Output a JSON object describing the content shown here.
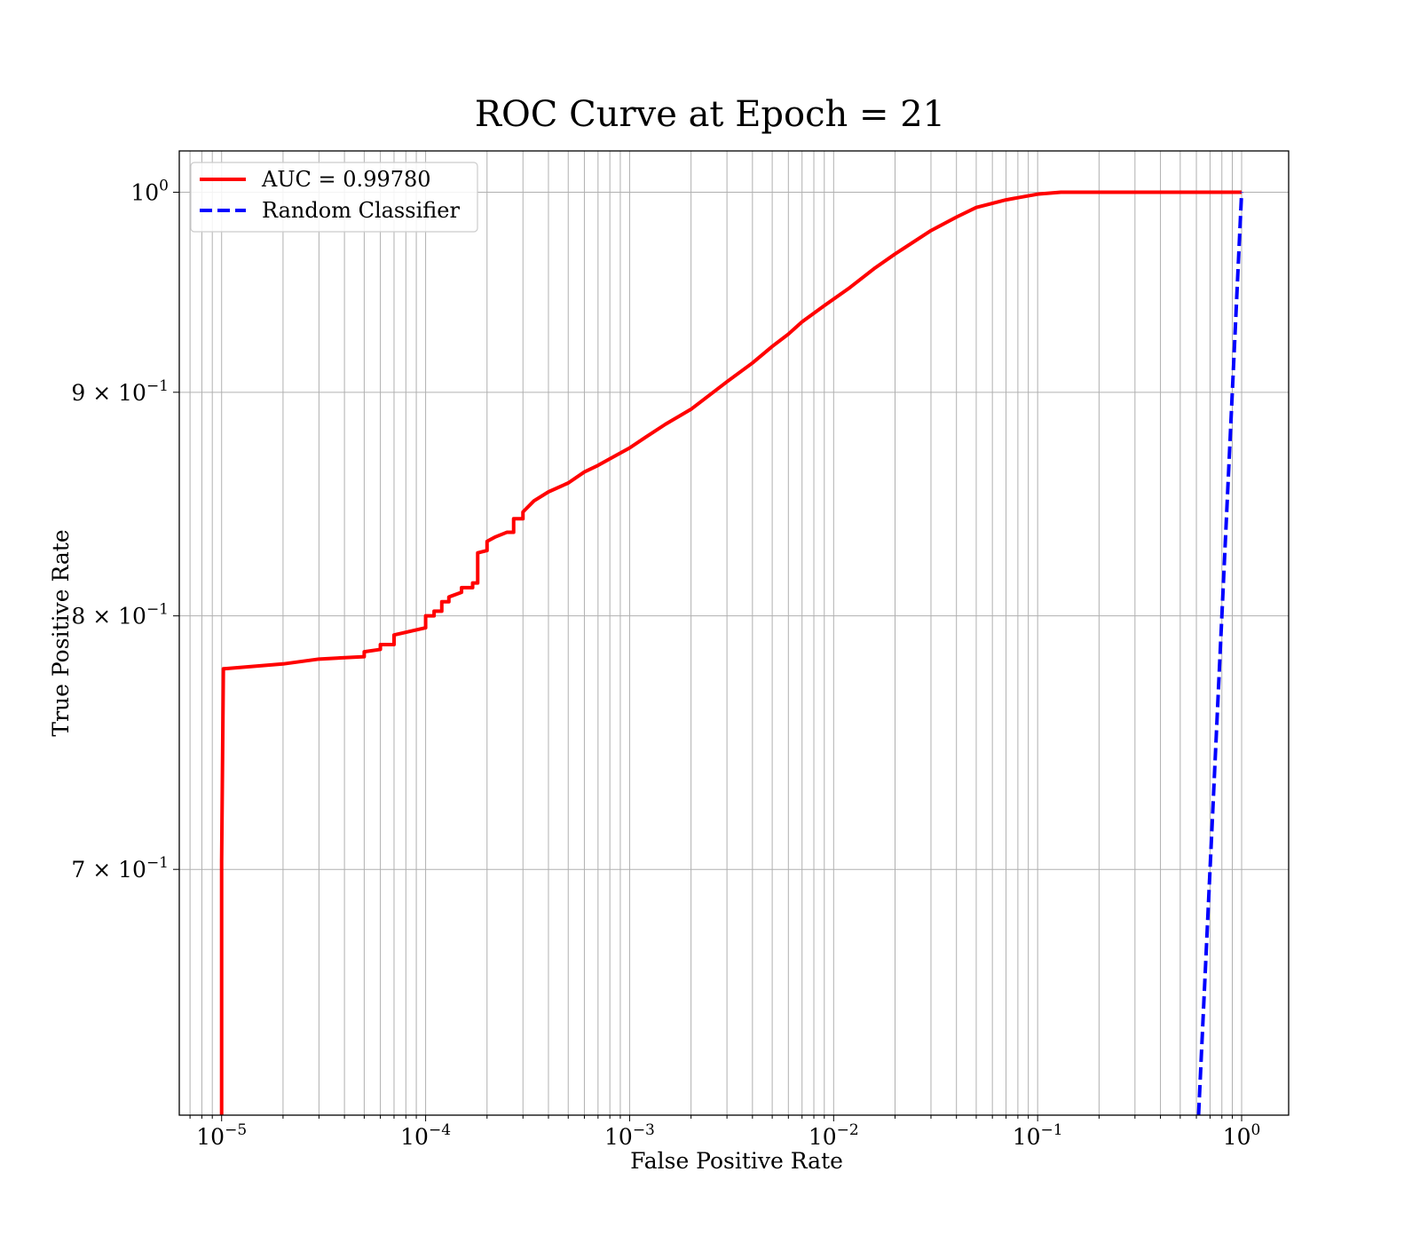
{
  "chart_data": {
    "type": "line",
    "title": "ROC Curve at Epoch = 21",
    "xlabel": "False Positive Rate",
    "ylabel": "True Positive Rate",
    "xscale": "log",
    "yscale": "log",
    "xlim": [
      6.2e-06,
      1.7
    ],
    "ylim": [
      0.615,
      1.022
    ],
    "x_ticks": [
      {
        "base": "10",
        "exp": "−5",
        "value": 1e-05
      },
      {
        "base": "10",
        "exp": "−4",
        "value": 0.0001
      },
      {
        "base": "10",
        "exp": "−3",
        "value": 0.001
      },
      {
        "base": "10",
        "exp": "−2",
        "value": 0.01
      },
      {
        "base": "10",
        "exp": "−1",
        "value": 0.1
      },
      {
        "base": "10",
        "exp": "0",
        "value": 1
      }
    ],
    "y_ticks": [
      {
        "mant": "7 × ",
        "base": "10",
        "exp": "−1",
        "value": 0.7
      },
      {
        "mant": "8 × ",
        "base": "10",
        "exp": "−1",
        "value": 0.8
      },
      {
        "mant": "9 × ",
        "base": "10",
        "exp": "−1",
        "value": 0.9
      },
      {
        "mant": "",
        "base": "10",
        "exp": "0",
        "value": 1.0
      }
    ],
    "grid": true,
    "legend_position": "upper-left",
    "series": [
      {
        "name": "AUC = 0.99780",
        "color": "#ff0000",
        "style": "solid",
        "x": [
          1e-05,
          1e-05,
          1e-05,
          1.02e-05,
          2e-05,
          3e-05,
          5e-05,
          5e-05,
          6e-05,
          6e-05,
          7e-05,
          7e-05,
          0.0001,
          0.0001,
          0.00011,
          0.00011,
          0.00012,
          0.00012,
          0.00013,
          0.00013,
          0.00015,
          0.00015,
          0.00017,
          0.00017,
          0.00018,
          0.00018,
          0.0002,
          0.0002,
          0.00022,
          0.00025,
          0.00027,
          0.00027,
          0.0003,
          0.0003,
          0.00034,
          0.0004,
          0.0005,
          0.0006,
          0.0007,
          0.0008,
          0.001,
          0.0012,
          0.0015,
          0.002,
          0.003,
          0.004,
          0.005,
          0.006,
          0.007,
          0.009,
          0.012,
          0.016,
          0.02,
          0.03,
          0.04,
          0.05,
          0.07,
          0.1,
          0.13,
          0.2,
          0.5,
          1.0
        ],
        "y": [
          0.615,
          0.63,
          0.703,
          0.778,
          0.78,
          0.782,
          0.783,
          0.785,
          0.786,
          0.788,
          0.788,
          0.792,
          0.795,
          0.8,
          0.8,
          0.802,
          0.802,
          0.806,
          0.806,
          0.808,
          0.81,
          0.812,
          0.812,
          0.814,
          0.814,
          0.827,
          0.828,
          0.832,
          0.834,
          0.836,
          0.836,
          0.842,
          0.842,
          0.845,
          0.85,
          0.854,
          0.858,
          0.863,
          0.866,
          0.869,
          0.874,
          0.879,
          0.885,
          0.892,
          0.905,
          0.914,
          0.922,
          0.928,
          0.934,
          0.942,
          0.951,
          0.961,
          0.968,
          0.98,
          0.987,
          0.992,
          0.996,
          0.999,
          1.0,
          1.0,
          1.0,
          1.0
        ]
      },
      {
        "name": "Random Classifier",
        "color": "#0000ff",
        "style": "dashed",
        "x": [
          0.615,
          0.7,
          0.8,
          0.9,
          1.0
        ],
        "y": [
          0.615,
          0.7,
          0.8,
          0.9,
          1.0
        ]
      }
    ]
  }
}
